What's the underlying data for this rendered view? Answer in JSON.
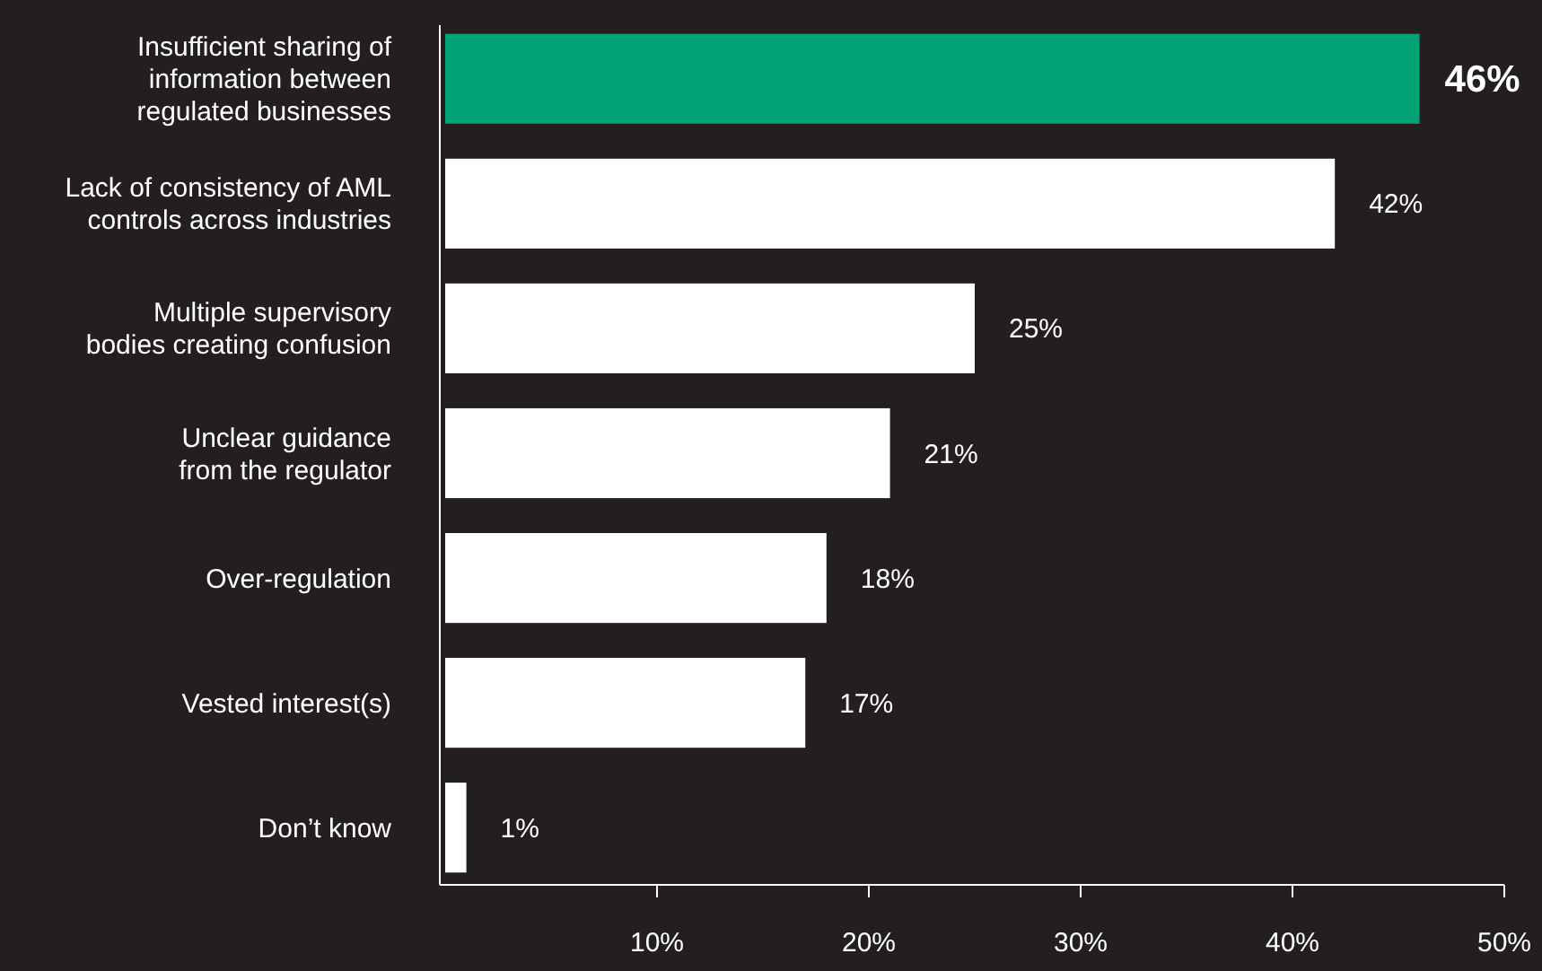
{
  "chart_data": {
    "type": "bar",
    "orientation": "horizontal",
    "categories": [
      "Insufficient sharing of\ninformation between\nregulated businesses",
      "Lack of consistency of AML\ncontrols across industries",
      "Multiple supervisory\nbodies creating confusion",
      "Unclear guidance\nfrom the regulator",
      "Over-regulation",
      "Vested interest(s)",
      "Don’t know"
    ],
    "values": [
      46,
      42,
      25,
      21,
      18,
      17,
      1
    ],
    "colors": [
      "#00a273",
      "#ffffff",
      "#ffffff",
      "#ffffff",
      "#ffffff",
      "#ffffff",
      "#ffffff"
    ],
    "value_labels": [
      "46%",
      "42%",
      "25%",
      "21%",
      "18%",
      "17%",
      "1%"
    ],
    "xlim": [
      0,
      50
    ],
    "xticks": [
      {
        "value": 10,
        "label": "10%"
      },
      {
        "value": 20,
        "label": "20%"
      },
      {
        "value": 30,
        "label": "30%"
      },
      {
        "value": 40,
        "label": "40%"
      },
      {
        "value": 50,
        "label": "50%"
      }
    ],
    "grid": false
  }
}
